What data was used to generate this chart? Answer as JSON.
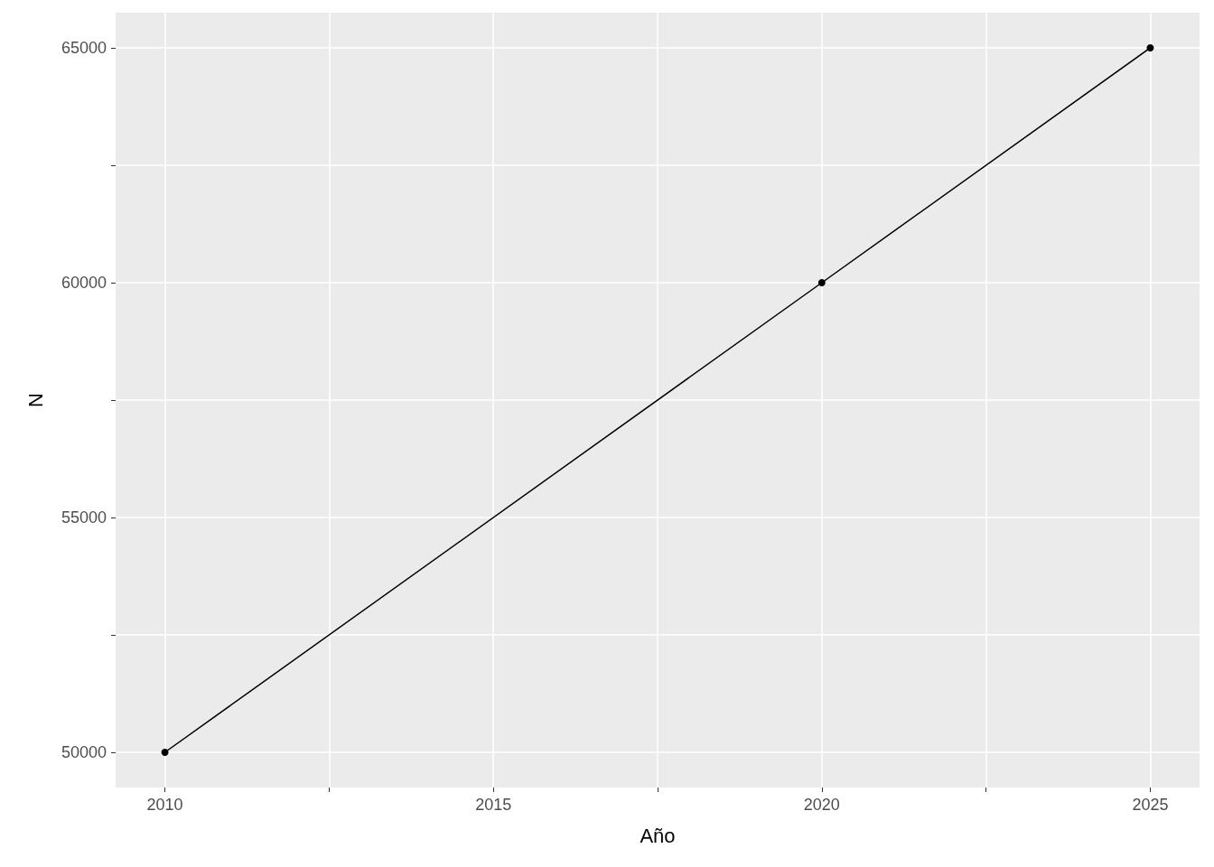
{
  "chart_data": {
    "type": "line",
    "xlabel": "Año",
    "ylabel": "N",
    "x": [
      2010,
      2020,
      2025
    ],
    "series": [
      {
        "color": "#000000",
        "values": [
          50000,
          60000,
          65000
        ]
      }
    ],
    "xlim": [
      2009.25,
      2025.75
    ],
    "xticks": [
      2010,
      {
        "value": 2012.5,
        "label": null
      },
      2015,
      {
        "value": 2017.5,
        "label": null
      },
      2020,
      {
        "value": 2022.5,
        "label": null
      },
      2025
    ],
    "ylim": [
      49250,
      65750
    ],
    "yticks": [
      50000,
      {
        "value": 52500,
        "label": null
      },
      55000,
      {
        "value": 57500,
        "label": null
      },
      60000,
      {
        "value": 62500,
        "label": null
      },
      65000
    ],
    "grid": true,
    "marker": "circle",
    "line_style": "solid"
  }
}
